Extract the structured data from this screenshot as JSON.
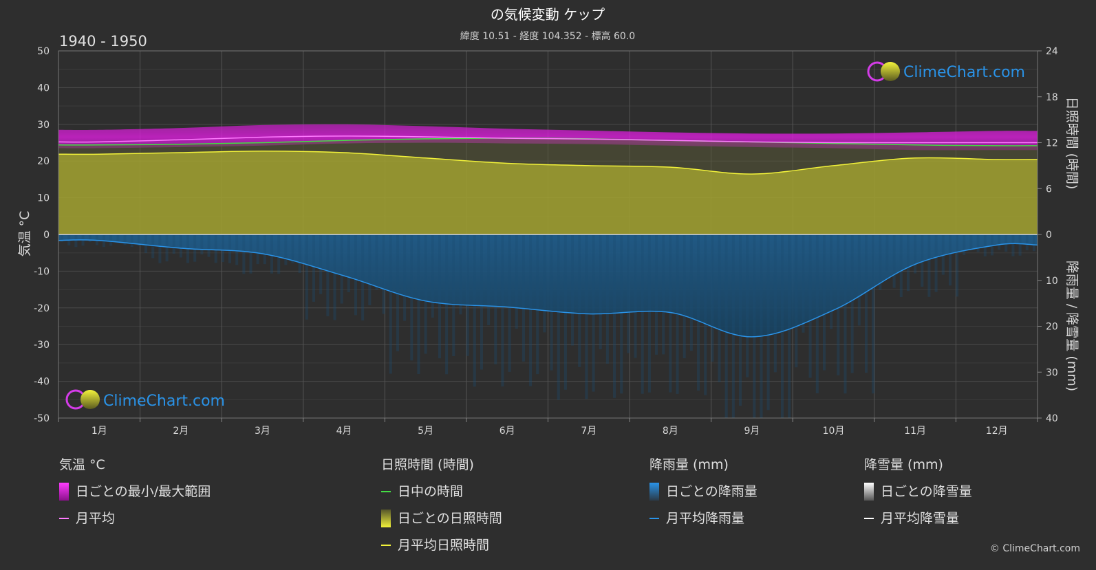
{
  "chart_data": {
    "type": "area",
    "title": "の気候変動 ケップ",
    "subtitle": "緯度 10.51 - 経度 104.352 - 標高 60.0",
    "period": "1940 - 1950",
    "watermark": "ClimeChart.com",
    "copyright": "© ClimeChart.com",
    "months": [
      "1月",
      "2月",
      "3月",
      "4月",
      "5月",
      "6月",
      "7月",
      "8月",
      "9月",
      "10月",
      "11月",
      "12月"
    ],
    "axes": {
      "left": {
        "label": "気温 °C",
        "min": -50,
        "max": 50,
        "ticks": [
          50,
          40,
          30,
          20,
          10,
          0,
          -10,
          -20,
          -30,
          -40,
          -50
        ]
      },
      "right_top": {
        "label": "日照時間 (時間)",
        "min": 0,
        "max": 24,
        "ticks": [
          24,
          18,
          12,
          6,
          0
        ]
      },
      "right_bottom": {
        "label": "降雨量 / 降雪量 (mm)",
        "min": 0,
        "max": 40,
        "ticks": [
          10,
          20,
          30,
          40
        ]
      }
    },
    "series": {
      "temp_max": [
        28.5,
        29.0,
        29.8,
        30.0,
        29.5,
        28.8,
        28.3,
        27.8,
        27.5,
        27.5,
        27.8,
        28.2
      ],
      "temp_min": [
        23.5,
        23.8,
        24.2,
        24.8,
        25.0,
        24.8,
        24.6,
        24.2,
        23.8,
        23.5,
        23.0,
        23.0
      ],
      "temp_mean": [
        25.2,
        25.8,
        26.5,
        26.8,
        26.6,
        26.2,
        26.0,
        25.6,
        25.2,
        25.0,
        25.0,
        25.0
      ],
      "daylight": [
        11.7,
        11.8,
        12.0,
        12.3,
        12.5,
        12.6,
        12.5,
        12.3,
        12.1,
        11.9,
        11.7,
        11.6
      ],
      "sunshine": [
        10.5,
        10.7,
        10.9,
        10.7,
        10.0,
        9.3,
        9.0,
        8.8,
        7.9,
        9.0,
        10.0,
        9.8
      ],
      "rain": [
        1.3,
        3.0,
        4.2,
        9.0,
        14.5,
        15.8,
        17.3,
        17.0,
        22.3,
        16.5,
        6.5,
        2.3
      ],
      "snow": [
        0,
        0,
        0,
        0,
        0,
        0,
        0,
        0,
        0,
        0,
        0,
        0
      ]
    },
    "colors": {
      "temp_range": "#e81ee8",
      "temp_mean": "#ff7bff",
      "daylight": "#44dd44",
      "sunshine_fill": "#a3a330",
      "sunshine_line": "#f2f23a",
      "rain_fill": "#1f5e8e",
      "rain_line": "#2a93e8",
      "snow": "#ffffff"
    }
  },
  "legend": {
    "groups": [
      {
        "title": "気温 °C",
        "items": [
          "日ごとの最小/最大範囲",
          "月平均"
        ]
      },
      {
        "title": "日照時間 (時間)",
        "items": [
          "日中の時間",
          "日ごとの日照時間",
          "月平均日照時間"
        ]
      },
      {
        "title": "降雨量 (mm)",
        "items": [
          "日ごとの降雨量",
          "月平均降雨量"
        ]
      },
      {
        "title": "降雪量 (mm)",
        "items": [
          "日ごとの降雪量",
          "月平均降雪量"
        ]
      }
    ]
  }
}
